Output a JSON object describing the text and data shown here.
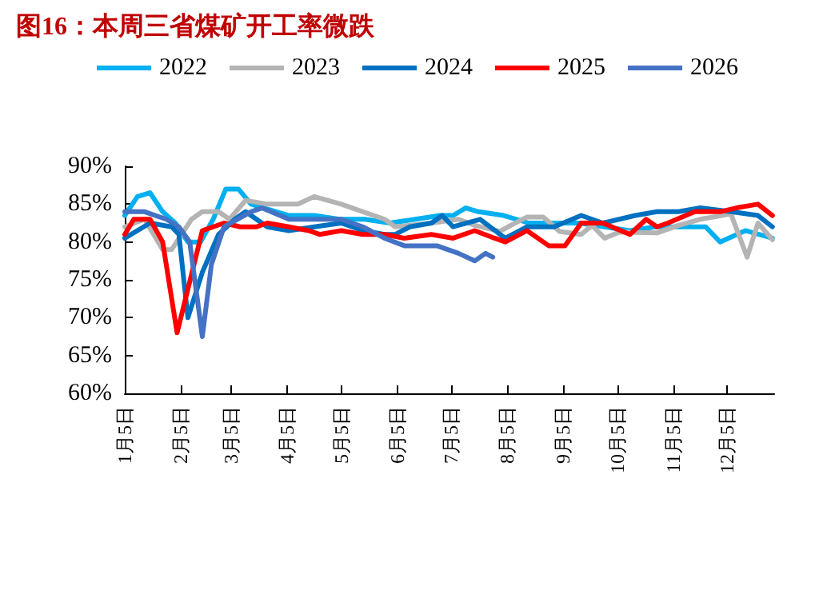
{
  "chart_data": {
    "type": "line",
    "title": "图16：本周三省煤矿开工率微跌",
    "xlim": [
      "--01-05",
      "--12-31"
    ],
    "xticks": [
      {
        "value": "--01-05",
        "label": "1月5日"
      },
      {
        "value": "--02-05",
        "label": "2月5日"
      },
      {
        "value": "--03-05",
        "label": "3月5日"
      },
      {
        "value": "--04-05",
        "label": "4月5日"
      },
      {
        "value": "--05-05",
        "label": "5月5日"
      },
      {
        "value": "--06-05",
        "label": "6月5日"
      },
      {
        "value": "--07-05",
        "label": "7月5日"
      },
      {
        "value": "--08-05",
        "label": "8月5日"
      },
      {
        "value": "--09-05",
        "label": "9月5日"
      },
      {
        "value": "--10-05",
        "label": "10月5日"
      },
      {
        "value": "--11-05",
        "label": "11月5日"
      },
      {
        "value": "--12-05",
        "label": "12月5日"
      }
    ],
    "ylim": [
      60,
      90
    ],
    "yticks": [
      {
        "value": 60,
        "label": "60%"
      },
      {
        "value": 65,
        "label": "65%"
      },
      {
        "value": 70,
        "label": "70%"
      },
      {
        "value": 75,
        "label": "75%"
      },
      {
        "value": 80,
        "label": "80%"
      },
      {
        "value": 85,
        "label": "85%"
      },
      {
        "value": 90,
        "label": "90%"
      }
    ],
    "legend": "top",
    "grid": false,
    "marker": "none",
    "line_style": "solid",
    "series": [
      {
        "name": "2022",
        "color": "#00b0f0",
        "x": [
          "--01-05",
          "--01-12",
          "--01-19",
          "--01-26",
          "--02-02",
          "--02-09",
          "--02-16",
          "--02-23",
          "--03-02",
          "--03-09",
          "--03-16",
          "--03-23",
          "--04-06",
          "--04-20",
          "--05-04",
          "--05-18",
          "--06-01",
          "--06-15",
          "--06-29",
          "--07-06",
          "--07-13",
          "--07-20",
          "--08-03",
          "--08-17",
          "--08-31",
          "--09-14",
          "--09-28",
          "--10-12",
          "--10-26",
          "--11-09",
          "--11-23",
          "--12-01",
          "--12-15",
          "--12-30"
        ],
        "values": [
          83.5,
          86,
          86.5,
          84,
          82.5,
          80,
          80,
          83,
          87,
          87,
          85,
          84.5,
          83.5,
          83.5,
          83,
          83,
          82.5,
          83,
          83.5,
          83.5,
          84.5,
          84,
          83.5,
          82.5,
          82.5,
          82.5,
          82,
          81.5,
          82,
          82,
          82,
          80,
          81.5,
          80.5
        ]
      },
      {
        "name": "2023",
        "color": "#b4b4b4",
        "x": [
          "--01-05",
          "--01-16",
          "--01-26",
          "--01-31",
          "--02-11",
          "--02-17",
          "--02-26",
          "--03-04",
          "--03-13",
          "--03-25",
          "--04-11",
          "--04-20",
          "--05-05",
          "--05-17",
          "--05-29",
          "--06-04",
          "--06-24",
          "--07-09",
          "--07-18",
          "--08-01",
          "--08-07",
          "--08-16",
          "--08-25",
          "--09-03",
          "--09-15",
          "--09-21",
          "--09-28",
          "--10-06",
          "--10-27",
          "--11-08",
          "--11-20",
          "--12-07",
          "--12-16",
          "--12-22",
          "--12-30"
        ],
        "values": [
          82,
          83,
          79,
          79,
          83,
          84,
          84,
          83,
          85.5,
          85,
          85,
          86,
          85,
          84,
          83,
          82,
          82.5,
          83,
          82.2,
          81.4,
          82.2,
          83.3,
          83.3,
          81.4,
          81,
          82.2,
          80.5,
          81.3,
          81.2,
          82.2,
          83,
          83.7,
          78,
          82.5,
          80.3
        ]
      },
      {
        "name": "2024",
        "color": "#0070c0",
        "x": [
          "--01-05",
          "--01-19",
          "--01-31",
          "--02-04",
          "--02-09",
          "--02-17",
          "--02-26",
          "--03-07",
          "--03-13",
          "--03-25",
          "--04-06",
          "--04-20",
          "--05-05",
          "--05-17",
          "--05-29",
          "--06-04",
          "--06-12",
          "--06-24",
          "--06-30",
          "--07-06",
          "--07-21",
          "--08-01",
          "--08-04",
          "--08-16",
          "--08-31",
          "--09-15",
          "--09-27",
          "--10-15",
          "--10-27",
          "--11-08",
          "--11-20",
          "--12-07",
          "--12-22",
          "--12-30"
        ],
        "values": [
          80.5,
          82.5,
          82,
          81,
          70,
          76,
          81,
          83,
          84,
          82,
          81.5,
          82,
          82.5,
          81.5,
          81,
          81,
          82,
          82.5,
          83.5,
          82,
          83,
          81,
          80.5,
          82,
          82,
          83.5,
          82.5,
          83.5,
          84,
          84,
          84.5,
          84,
          83.5,
          82
        ]
      },
      {
        "name": "2025",
        "color": "#ff0000",
        "x": [
          "--01-05",
          "--01-10",
          "--01-19",
          "--01-26",
          "--02-03",
          "--02-17",
          "--03-01",
          "--03-10",
          "--03-19",
          "--03-25",
          "--04-06",
          "--04-17",
          "--04-23",
          "--05-05",
          "--05-17",
          "--05-29",
          "--06-09",
          "--06-24",
          "--07-06",
          "--07-18",
          "--07-29",
          "--08-04",
          "--08-16",
          "--08-28",
          "--09-06",
          "--09-15",
          "--09-27",
          "--10-12",
          "--10-21",
          "--10-27",
          "--11-02",
          "--11-17",
          "--12-01",
          "--12-10",
          "--12-22",
          "--12-30"
        ],
        "values": [
          81,
          83,
          83,
          80,
          68,
          81.5,
          82.5,
          82,
          82,
          82.5,
          82,
          81.5,
          81,
          81.5,
          81,
          81,
          80.5,
          81,
          80.5,
          81.5,
          80.5,
          80,
          81.5,
          79.5,
          79.5,
          82.5,
          82.5,
          81,
          83,
          82,
          82.5,
          84,
          84,
          84.5,
          85,
          83.5
        ]
      },
      {
        "name": "2026",
        "color": "#4472c4",
        "x": [
          "--01-05",
          "--01-16",
          "--01-28",
          "--02-04",
          "--02-10",
          "--02-17",
          "--02-22",
          "--03-01",
          "--03-16",
          "--03-22",
          "--04-06",
          "--04-17",
          "--05-05",
          "--05-17",
          "--05-29",
          "--06-09",
          "--06-27",
          "--07-09",
          "--07-18",
          "--07-24",
          "--07-28"
        ],
        "values": [
          84,
          84,
          83,
          82,
          80,
          67.5,
          77,
          82,
          84,
          84.5,
          83,
          83,
          83,
          82,
          80.5,
          79.5,
          79.5,
          78.5,
          77.5,
          78.5,
          78
        ]
      }
    ]
  }
}
